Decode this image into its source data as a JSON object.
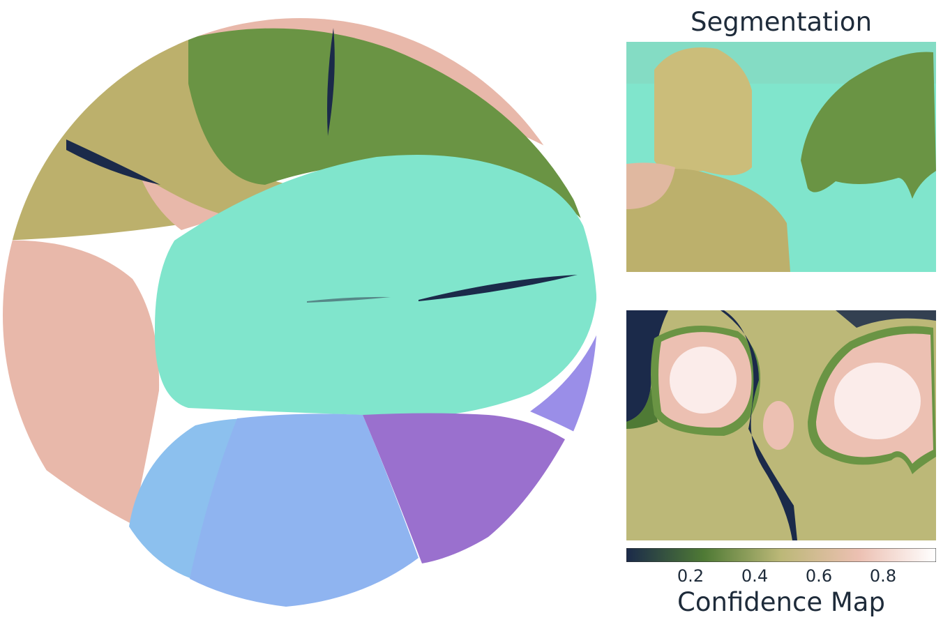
{
  "titles": {
    "segmentation": "Segmentation",
    "confidence": "Confidence Map"
  },
  "colorbar": {
    "ticks": [
      "0.2",
      "0.4",
      "0.6",
      "0.8"
    ],
    "colors": [
      "#1b2a4a",
      "#4f7a35",
      "#bcb878",
      "#ecc0b2",
      "#ffffff"
    ]
  },
  "region_colors": {
    "teal": "#80e5cc",
    "green": "#6a9444",
    "olive": "#bcb06c",
    "salmon": "#e8b8aa",
    "light_blue": "#8fb4f0",
    "sky_blue": "#8cc0ee",
    "purple": "#9a70ce",
    "violet": "#9a8ee8",
    "dark_navy": "#1b2a4a"
  }
}
